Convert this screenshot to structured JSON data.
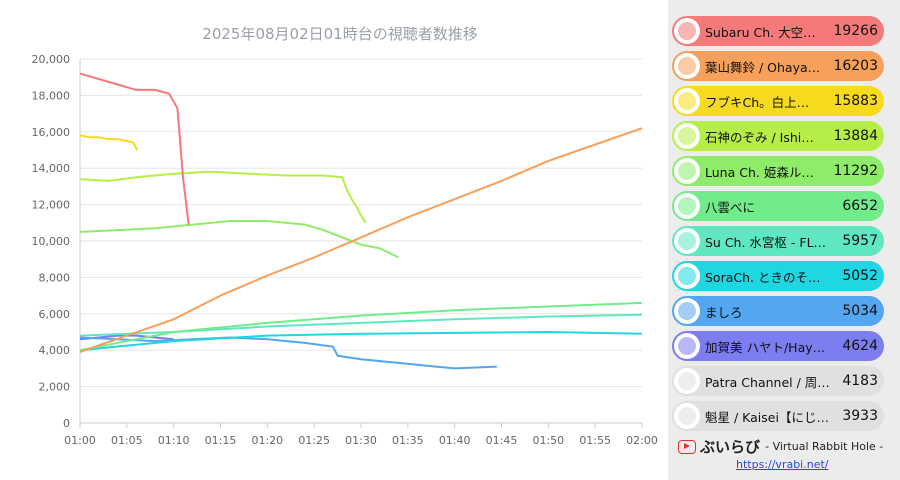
{
  "chart_data": {
    "type": "line",
    "title": "2025年08月02日01時台の視聴者数推移",
    "xlabel": "",
    "ylabel": "",
    "xlim": [
      0,
      60
    ],
    "ylim": [
      0,
      20000
    ],
    "x_tick_labels": [
      "01:00",
      "01:05",
      "01:10",
      "01:15",
      "01:20",
      "01:25",
      "01:30",
      "01:35",
      "01:40",
      "01:45",
      "01:50",
      "01:55",
      "02:00"
    ],
    "y_tick_labels": [
      "0",
      "2,000",
      "4,000",
      "6,000",
      "8,000",
      "10,000",
      "12,000",
      "14,000",
      "16,000",
      "18,000",
      "20,000"
    ],
    "grid": true,
    "legend_position": "right",
    "series": [
      {
        "name": "Subaru Ch. 大空…",
        "label_value": "19266",
        "color": "#f47a7a",
        "x": [
          0,
          2,
          4,
          6,
          8,
          9.5,
          10.4,
          11,
          11.6
        ],
        "y": [
          19200,
          18900,
          18600,
          18300,
          18300,
          18100,
          17300,
          13500,
          10900
        ]
      },
      {
        "name": "葉山舞鈴 / Ohaya…",
        "label_value": "16203",
        "color": "#f6a05b",
        "x": [
          0,
          5,
          10,
          15,
          20,
          25,
          30,
          35,
          40,
          45,
          50,
          55,
          60
        ],
        "y": [
          3900,
          4800,
          5700,
          7000,
          8100,
          9100,
          10200,
          11300,
          12300,
          13300,
          14400,
          15300,
          16200
        ]
      },
      {
        "name": "フブキCh。白上…",
        "label_value": "15883",
        "color": "#f6da1e",
        "x": [
          0,
          1,
          2,
          3,
          4,
          5,
          5.7,
          6.1
        ],
        "y": [
          15800,
          15700,
          15700,
          15600,
          15600,
          15500,
          15400,
          15000
        ]
      },
      {
        "name": "石神のぞみ / Ishi…",
        "label_value": "13884",
        "color": "#b6ee47",
        "x": [
          0,
          3,
          6,
          10,
          14,
          18,
          22,
          26,
          28,
          28.5,
          29,
          29.5,
          30,
          30.5
        ],
        "y": [
          13400,
          13300,
          13500,
          13700,
          13800,
          13700,
          13600,
          13600,
          13500,
          12800,
          12300,
          11900,
          11400,
          11000
        ]
      },
      {
        "name": "Luna Ch. 姫森ル…",
        "label_value": "11292",
        "color": "#8eec6a",
        "x": [
          0,
          4,
          8,
          12,
          16,
          20,
          24,
          26,
          28,
          30,
          32,
          34
        ],
        "y": [
          10500,
          10600,
          10700,
          10900,
          11100,
          11100,
          10900,
          10600,
          10200,
          9800,
          9600,
          9100
        ]
      },
      {
        "name": "八雲べに",
        "label_value": "6652",
        "color": "#72ec8b",
        "x": [
          0,
          10,
          20,
          30,
          40,
          50,
          60
        ],
        "y": [
          4000,
          5000,
          5500,
          5900,
          6200,
          6400,
          6600
        ]
      },
      {
        "name": "Su Ch. 水宮枢 - FL…",
        "label_value": "5957",
        "color": "#5fe7c2",
        "x": [
          0,
          10,
          20,
          30,
          40,
          50,
          60
        ],
        "y": [
          4800,
          5000,
          5300,
          5500,
          5700,
          5850,
          5950
        ]
      },
      {
        "name": "SoraCh. ときのそ…",
        "label_value": "5052",
        "color": "#1ed7e2",
        "x": [
          0,
          10,
          20,
          30,
          40,
          50,
          60
        ],
        "y": [
          4000,
          4500,
          4800,
          4900,
          4950,
          5000,
          4900
        ]
      },
      {
        "name": "ましろ",
        "label_value": "5034",
        "color": "#55a6f0",
        "x": [
          0,
          4,
          8,
          12,
          16,
          20,
          24,
          27,
          27.5,
          30,
          34,
          38,
          40,
          44.5
        ],
        "y": [
          4700,
          4600,
          4500,
          4600,
          4700,
          4600,
          4400,
          4200,
          3700,
          3500,
          3300,
          3100,
          3000,
          3100
        ]
      },
      {
        "name": "加賀美 ハヤト/Hay…",
        "label_value": "4624",
        "color": "#7b7df0",
        "x": [
          0,
          2,
          4,
          6,
          8,
          10
        ],
        "y": [
          4600,
          4700,
          4800,
          4800,
          4700,
          4600
        ]
      },
      {
        "name": "Patra Channel / 周…",
        "label_value": "4183",
        "color": "#e0e0e0",
        "x": [],
        "y": []
      },
      {
        "name": "魁星 / Kaisei【にじ…",
        "label_value": "3933",
        "color": "#e0e0e0",
        "x": [],
        "y": []
      }
    ]
  },
  "footer": {
    "brand_icon": "play-button-icon",
    "brand": "ぶいらび",
    "tagline": "- Virtual Rabbit Hole -",
    "link": "https://vrabi.net/"
  }
}
